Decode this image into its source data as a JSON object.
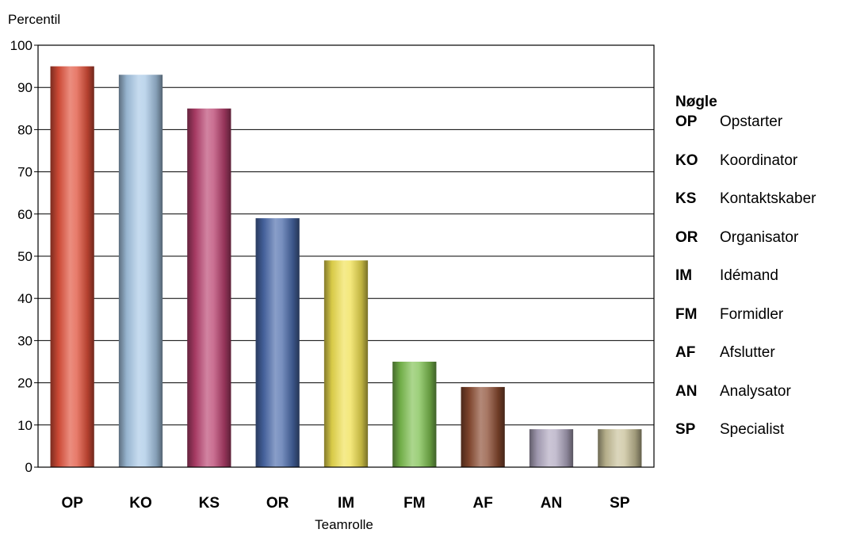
{
  "chart_data": {
    "type": "bar",
    "ylabel": "Percentil",
    "xlabel": "Teamrolle",
    "ylim": [
      0,
      100
    ],
    "yticks": [
      0,
      10,
      20,
      30,
      40,
      50,
      60,
      70,
      80,
      90,
      100
    ],
    "grid": true,
    "categories": [
      "OP",
      "KO",
      "KS",
      "OR",
      "IM",
      "FM",
      "AF",
      "AN",
      "SP"
    ],
    "values": [
      95,
      93,
      85,
      59,
      49,
      25,
      19,
      9,
      9
    ],
    "colors": [
      "#e0503a",
      "#a8c8e6",
      "#b8406e",
      "#4a6aaa",
      "#f0e050",
      "#7ec050",
      "#8a4a30",
      "#b0a8c0",
      "#c8c098"
    ],
    "legend_placement": "right"
  },
  "legend": {
    "title": "Nøgle",
    "items": [
      {
        "code": "OP",
        "label": "Opstarter"
      },
      {
        "code": "KO",
        "label": "Koordinator"
      },
      {
        "code": "KS",
        "label": "Kontaktskaber"
      },
      {
        "code": "OR",
        "label": "Organisator"
      },
      {
        "code": "IM",
        "label": "Idémand"
      },
      {
        "code": "FM",
        "label": "Formidler"
      },
      {
        "code": "AF",
        "label": "Afslutter"
      },
      {
        "code": "AN",
        "label": "Analysator"
      },
      {
        "code": "SP",
        "label": "Specialist"
      }
    ]
  }
}
